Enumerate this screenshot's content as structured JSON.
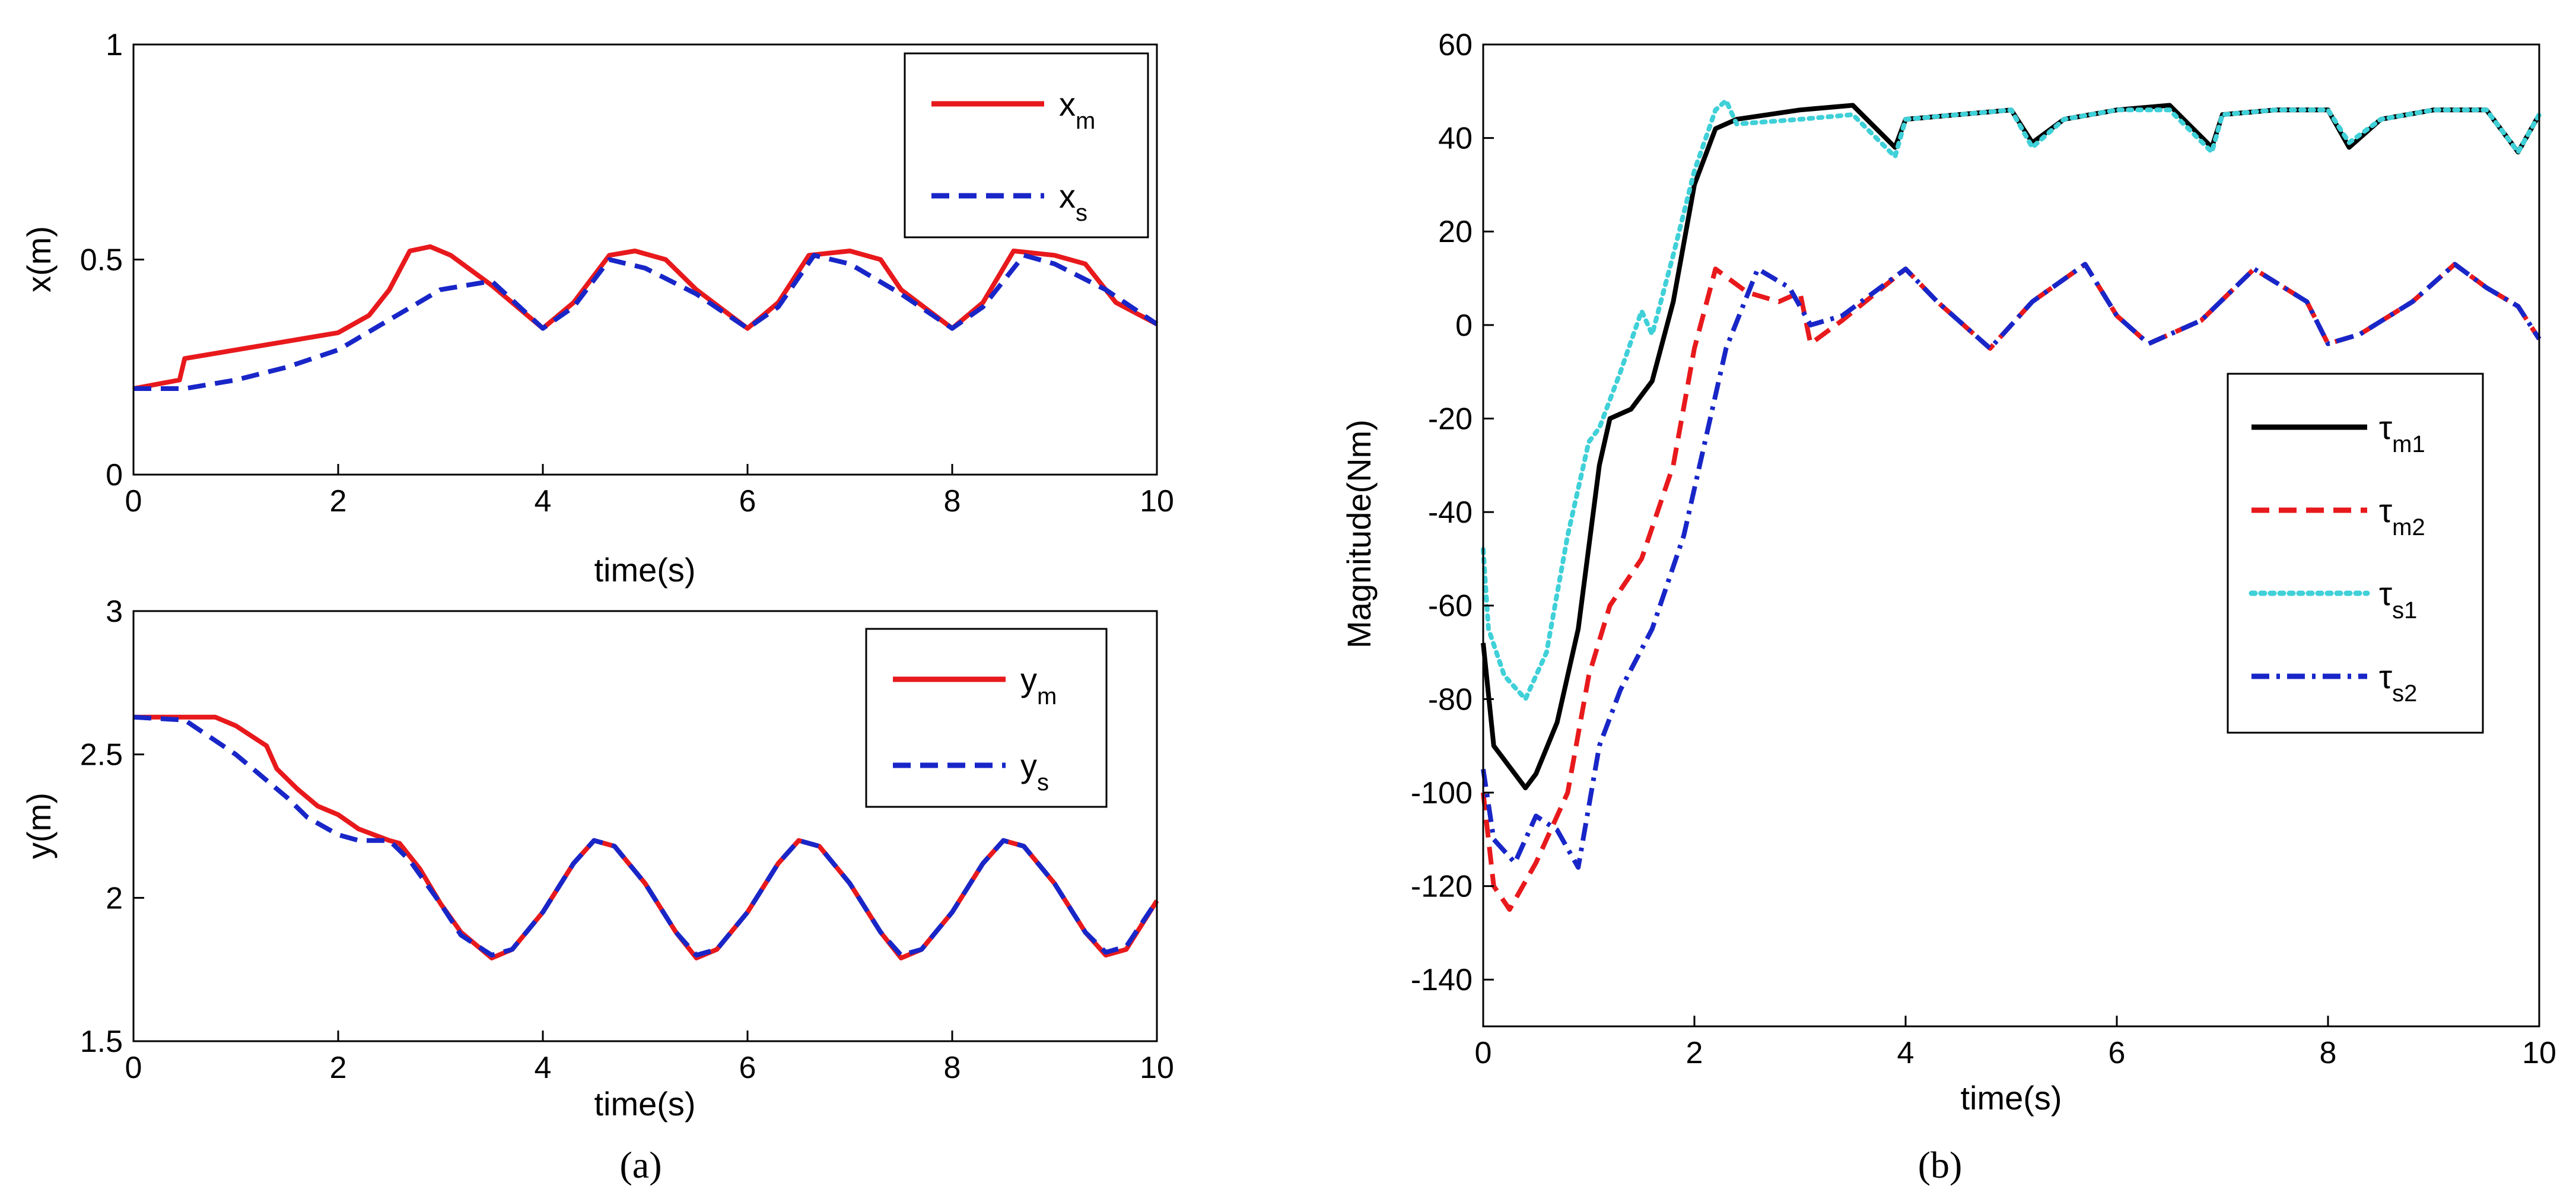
{
  "chart_data": [
    {
      "id": "x",
      "type": "line",
      "xlabel": "time(s)",
      "ylabel": "x(m)",
      "xlim": [
        0,
        10
      ],
      "ylim": [
        0,
        1
      ],
      "xticks": [
        "0",
        "2",
        "4",
        "6",
        "8",
        "10"
      ],
      "yticks": [
        "0",
        "0.5",
        "1"
      ],
      "series": [
        {
          "name": "x",
          "sub": "m",
          "color": "#e8191c",
          "dash": "solid",
          "x": [
            0,
            0.45,
            0.5,
            1,
            1.5,
            2,
            2.3,
            2.5,
            2.7,
            2.9,
            3.1,
            3.5,
            4,
            4.3,
            4.65,
            4.9,
            5.2,
            5.5,
            6,
            6.3,
            6.6,
            7,
            7.3,
            7.5,
            8,
            8.3,
            8.6,
            9,
            9.3,
            9.6,
            10
          ],
          "y": [
            0.2,
            0.22,
            0.27,
            0.29,
            0.31,
            0.33,
            0.37,
            0.43,
            0.52,
            0.53,
            0.51,
            0.44,
            0.34,
            0.4,
            0.51,
            0.52,
            0.5,
            0.43,
            0.34,
            0.4,
            0.51,
            0.52,
            0.5,
            0.43,
            0.34,
            0.4,
            0.52,
            0.51,
            0.49,
            0.4,
            0.35
          ]
        },
        {
          "name": "x",
          "sub": "s",
          "color": "#1826c8",
          "dash": "dashed",
          "x": [
            0,
            0.5,
            1,
            1.5,
            2,
            2.5,
            3,
            3.5,
            4,
            4.3,
            4.65,
            5,
            5.5,
            6,
            6.3,
            6.65,
            7,
            7.5,
            8,
            8.3,
            8.7,
            9,
            9.5,
            10
          ],
          "y": [
            0.2,
            0.2,
            0.22,
            0.25,
            0.29,
            0.36,
            0.43,
            0.45,
            0.34,
            0.39,
            0.5,
            0.48,
            0.42,
            0.34,
            0.39,
            0.51,
            0.49,
            0.42,
            0.34,
            0.39,
            0.51,
            0.49,
            0.43,
            0.35
          ]
        }
      ]
    },
    {
      "id": "y",
      "type": "line",
      "xlabel": "time(s)",
      "ylabel": "y(m)",
      "xlim": [
        0,
        10
      ],
      "ylim": [
        1.5,
        3
      ],
      "xticks": [
        "0",
        "2",
        "4",
        "6",
        "8",
        "10"
      ],
      "yticks": [
        "1.5",
        "2",
        "2.5",
        "3"
      ],
      "series": [
        {
          "name": "y",
          "sub": "m",
          "color": "#e8191c",
          "dash": "solid",
          "x": [
            0,
            0.8,
            1,
            1.3,
            1.4,
            1.6,
            1.8,
            2,
            2.2,
            2.5,
            2.6,
            2.8,
            3,
            3.2,
            3.5,
            3.7,
            4,
            4.3,
            4.5,
            4.7,
            5,
            5.3,
            5.5,
            5.7,
            6,
            6.3,
            6.5,
            6.7,
            7,
            7.3,
            7.5,
            7.7,
            8,
            8.3,
            8.5,
            8.7,
            9,
            9.3,
            9.5,
            9.7,
            10
          ],
          "y": [
            2.63,
            2.63,
            2.6,
            2.53,
            2.45,
            2.38,
            2.32,
            2.29,
            2.24,
            2.2,
            2.19,
            2.1,
            1.98,
            1.88,
            1.79,
            1.82,
            1.95,
            2.12,
            2.2,
            2.18,
            2.05,
            1.88,
            1.79,
            1.82,
            1.95,
            2.12,
            2.2,
            2.18,
            2.05,
            1.88,
            1.79,
            1.82,
            1.95,
            2.12,
            2.2,
            2.18,
            2.05,
            1.88,
            1.8,
            1.82,
            1.99
          ]
        },
        {
          "name": "y",
          "sub": "s",
          "color": "#1826c8",
          "dash": "dashed",
          "x": [
            0,
            0.5,
            1,
            1.5,
            1.7,
            2,
            2.2,
            2.5,
            2.7,
            3,
            3.2,
            3.5,
            3.7,
            4,
            4.3,
            4.5,
            4.7,
            5,
            5.3,
            5.5,
            5.7,
            6,
            6.3,
            6.5,
            6.7,
            7,
            7.3,
            7.5,
            7.7,
            8,
            8.3,
            8.5,
            8.7,
            9,
            9.3,
            9.5,
            9.7,
            10
          ],
          "y": [
            2.63,
            2.62,
            2.5,
            2.35,
            2.28,
            2.22,
            2.2,
            2.2,
            2.13,
            1.98,
            1.87,
            1.8,
            1.82,
            1.95,
            2.12,
            2.2,
            2.18,
            2.05,
            1.88,
            1.8,
            1.82,
            1.95,
            2.12,
            2.2,
            2.18,
            2.05,
            1.88,
            1.8,
            1.82,
            1.95,
            2.12,
            2.2,
            2.18,
            2.05,
            1.88,
            1.81,
            1.83,
            1.99
          ]
        }
      ]
    },
    {
      "id": "tau",
      "type": "line",
      "xlabel": "time(s)",
      "ylabel": "Magnitude(Nm)",
      "xlim": [
        0,
        10
      ],
      "ylim": [
        -150,
        60
      ],
      "xticks": [
        "0",
        "2",
        "4",
        "6",
        "8",
        "10"
      ],
      "yticks": [
        "-140",
        "-120",
        "-100",
        "-80",
        "-60",
        "-40",
        "-20",
        "0",
        "20",
        "40",
        "60"
      ],
      "series": [
        {
          "name": "τ",
          "sub": "m1",
          "color": "#000000",
          "dash": "solid",
          "x": [
            0,
            0.1,
            0.3,
            0.4,
            0.5,
            0.7,
            0.9,
            1.1,
            1.2,
            1.4,
            1.6,
            1.8,
            2,
            2.2,
            2.4,
            3,
            3.5,
            3.9,
            4,
            4.5,
            5,
            5.2,
            5.5,
            6,
            6.5,
            6.9,
            7,
            7.5,
            8,
            8.2,
            8.5,
            9,
            9.5,
            9.8,
            10
          ],
          "y": [
            -68,
            -90,
            -96,
            -99,
            -96,
            -85,
            -65,
            -30,
            -20,
            -18,
            -12,
            5,
            30,
            42,
            44,
            46,
            47,
            38,
            44,
            45,
            46,
            39,
            44,
            46,
            47,
            38,
            45,
            46,
            46,
            38,
            44,
            46,
            46,
            37,
            45
          ]
        },
        {
          "name": "τ",
          "sub": "m2",
          "color": "#e8191c",
          "dash": "dashed",
          "x": [
            0,
            0.1,
            0.25,
            0.5,
            0.8,
            1,
            1.2,
            1.5,
            1.8,
            2,
            2.2,
            2.5,
            2.8,
            3,
            3.1,
            3.4,
            4,
            4.3,
            4.8,
            5.2,
            5.7,
            6,
            6.3,
            6.8,
            7.3,
            7.8,
            8,
            8.3,
            8.8,
            9.2,
            9.5,
            9.8,
            10
          ],
          "y": [
            -100,
            -120,
            -125,
            -115,
            -100,
            -75,
            -60,
            -50,
            -30,
            -5,
            12,
            7,
            5,
            7,
            -4,
            1,
            12,
            5,
            -5,
            5,
            13,
            2,
            -4,
            1,
            12,
            5,
            -4,
            -2,
            5,
            13,
            8,
            4,
            -3
          ]
        },
        {
          "name": "τ",
          "sub": "s1",
          "color": "#3fd0d8",
          "dash": "dotted",
          "x": [
            0,
            0.05,
            0.2,
            0.4,
            0.6,
            0.8,
            1,
            1.1,
            1.3,
            1.5,
            1.6,
            1.8,
            2,
            2.2,
            2.3,
            2.4,
            3,
            3.5,
            3.9,
            4,
            4.5,
            5,
            5.2,
            5.5,
            6,
            6.5,
            6.9,
            7,
            7.5,
            8,
            8.2,
            8.5,
            9,
            9.5,
            9.8,
            10
          ],
          "y": [
            -48,
            -65,
            -75,
            -80,
            -70,
            -45,
            -25,
            -22,
            -10,
            3,
            -2,
            15,
            33,
            46,
            48,
            43,
            44,
            45,
            36,
            44,
            45,
            46,
            38,
            44,
            46,
            46,
            37,
            45,
            46,
            46,
            39,
            44,
            46,
            46,
            37,
            45
          ]
        },
        {
          "name": "τ",
          "sub": "s2",
          "color": "#1826c8",
          "dash": "dashdot",
          "x": [
            0,
            0.1,
            0.3,
            0.5,
            0.7,
            0.9,
            1.1,
            1.3,
            1.6,
            1.9,
            2.1,
            2.3,
            2.6,
            2.9,
            3.1,
            3.4,
            4,
            4.3,
            4.8,
            5.2,
            5.7,
            6,
            6.3,
            6.8,
            7.3,
            7.8,
            8,
            8.3,
            8.8,
            9.2,
            9.5,
            9.8,
            10
          ],
          "y": [
            -95,
            -110,
            -115,
            -105,
            -108,
            -116,
            -90,
            -78,
            -65,
            -45,
            -25,
            -5,
            12,
            8,
            0,
            2,
            12,
            5,
            -5,
            5,
            13,
            2,
            -4,
            1,
            12,
            5,
            -4,
            -2,
            5,
            13,
            8,
            4,
            -3
          ]
        }
      ]
    }
  ],
  "panel_labels": {
    "a": "(a)",
    "b": "(b)"
  }
}
